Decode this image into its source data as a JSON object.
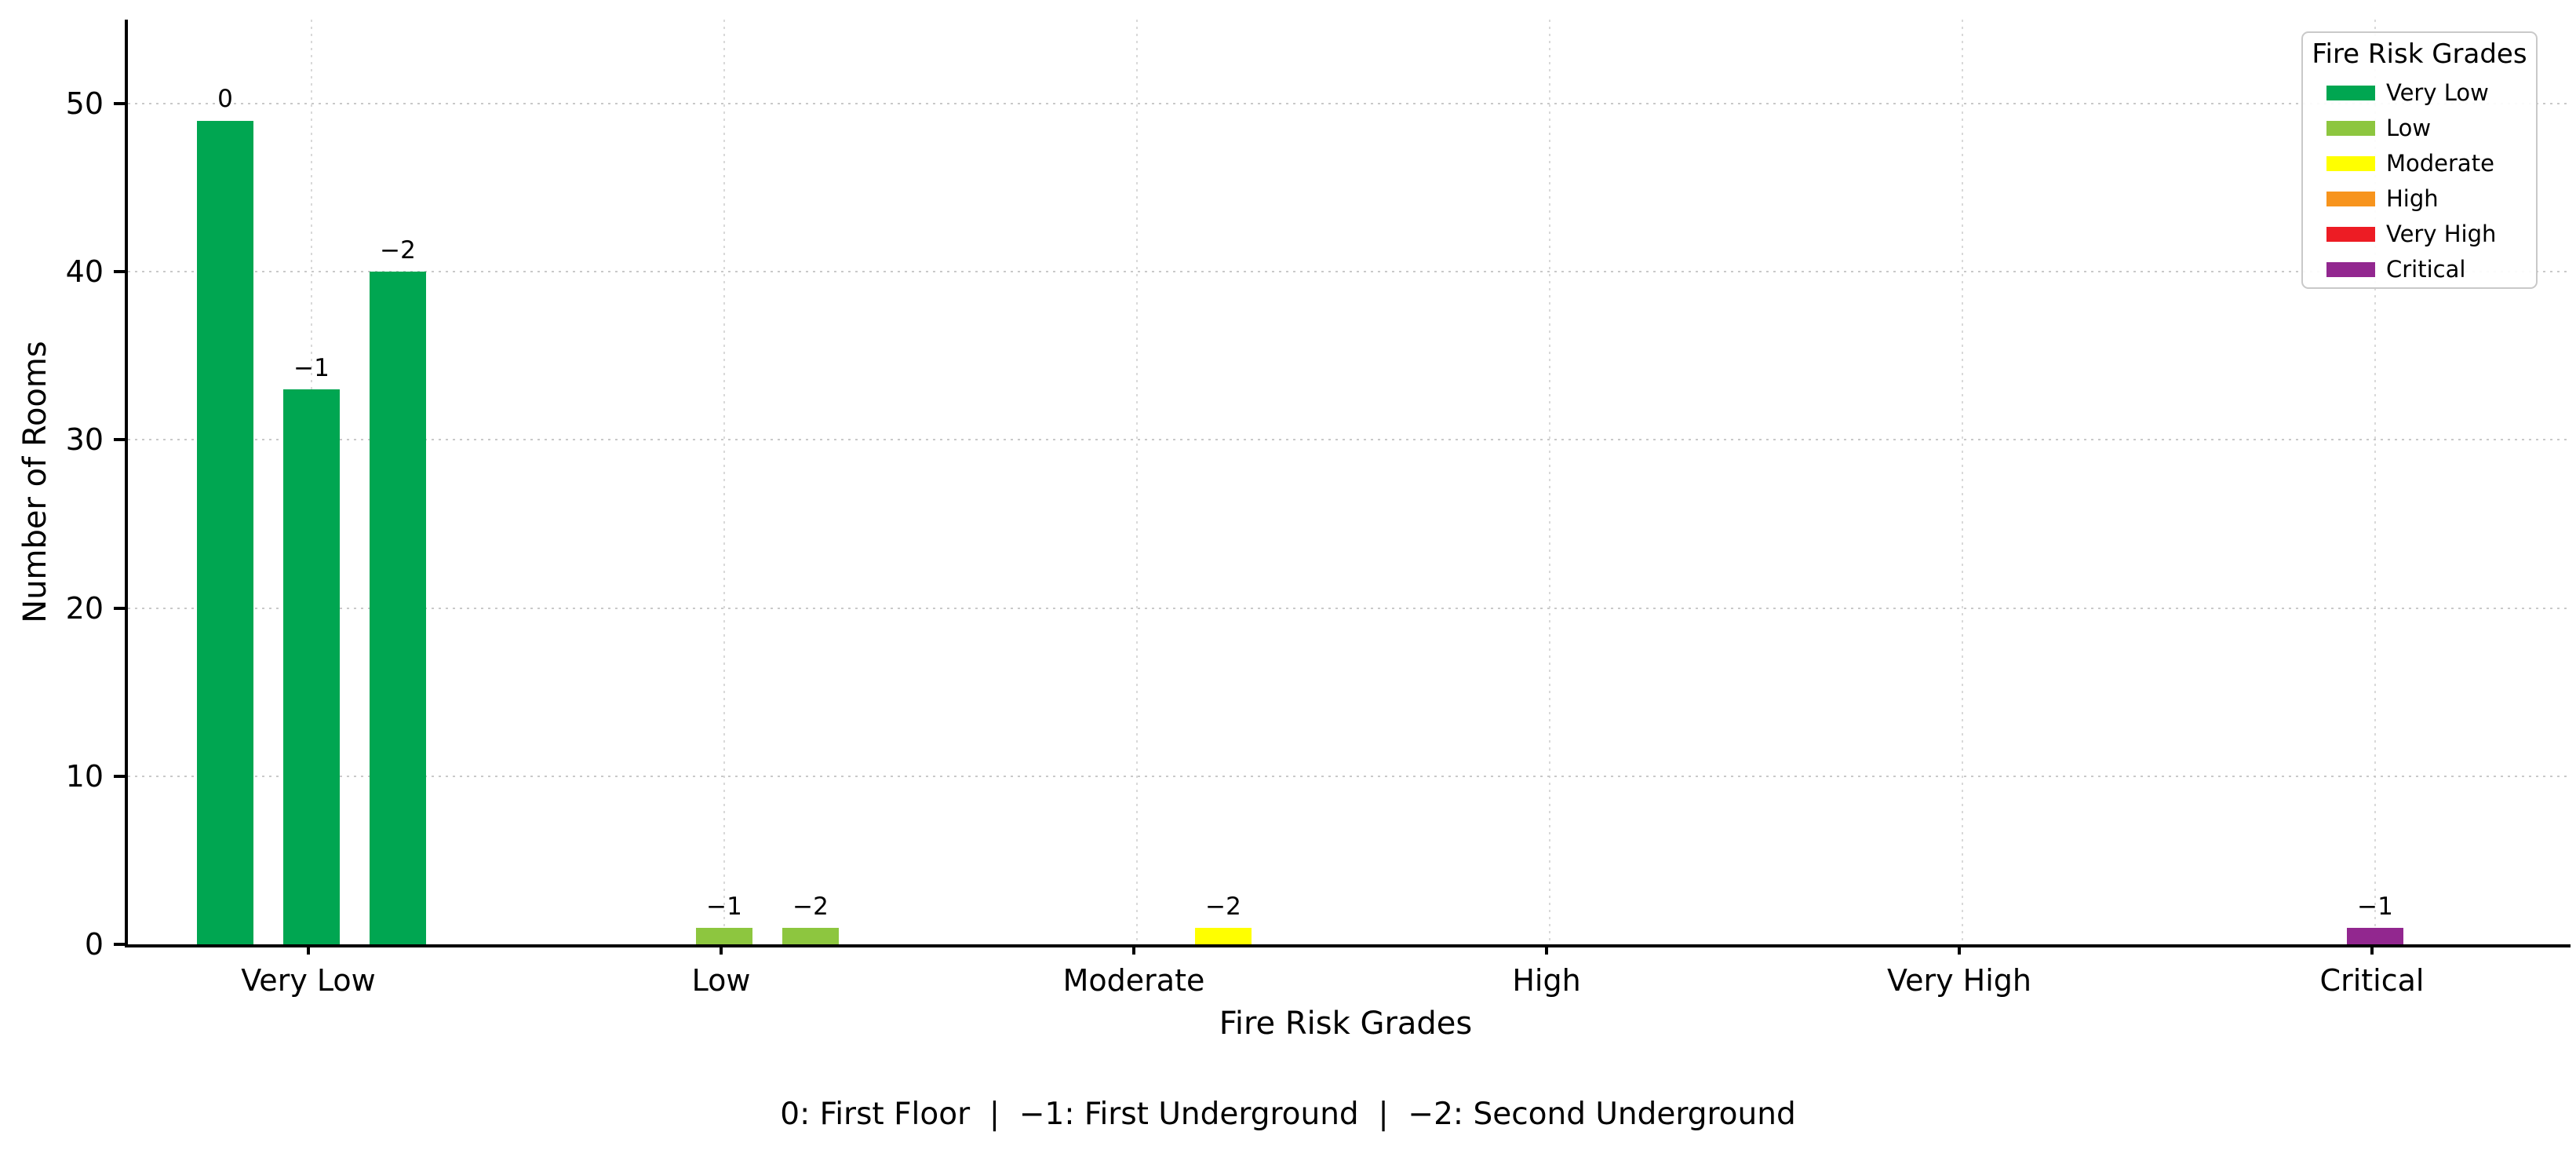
{
  "chart_data": {
    "type": "bar",
    "title": "",
    "xlabel": "Fire Risk Grades",
    "ylabel": "Number of Rooms",
    "categories": [
      "Very Low",
      "Low",
      "Moderate",
      "High",
      "Very High",
      "Critical"
    ],
    "category_colors": [
      "#00A651",
      "#8DC63F",
      "#FFFF00",
      "#F7941D",
      "#ED1C24",
      "#92278F"
    ],
    "series": [
      {
        "name": "0",
        "label": "0",
        "values": [
          49,
          0,
          0,
          0,
          0,
          0
        ]
      },
      {
        "name": "-1",
        "label": "−1",
        "values": [
          33,
          1,
          0,
          0,
          0,
          1
        ]
      },
      {
        "name": "-2",
        "label": "−2",
        "values": [
          40,
          1,
          1,
          0,
          0,
          0
        ]
      }
    ],
    "ylim": [
      0,
      55
    ],
    "yticks": [
      0,
      10,
      20,
      30,
      40,
      50
    ],
    "grid": true,
    "bar_value_labels": true,
    "legend": {
      "title": "Fire Risk Grades",
      "position": "upper right",
      "entries": [
        {
          "label": "Very Low",
          "color": "#00A651"
        },
        {
          "label": "Low",
          "color": "#8DC63F"
        },
        {
          "label": "Moderate",
          "color": "#FFFF00"
        },
        {
          "label": "High",
          "color": "#F7941D"
        },
        {
          "label": "Very High",
          "color": "#ED1C24"
        },
        {
          "label": "Critical",
          "color": "#92278F"
        }
      ]
    },
    "footnote": "0: First Floor  |  −1: First Underground  |  −2: Second Underground"
  }
}
